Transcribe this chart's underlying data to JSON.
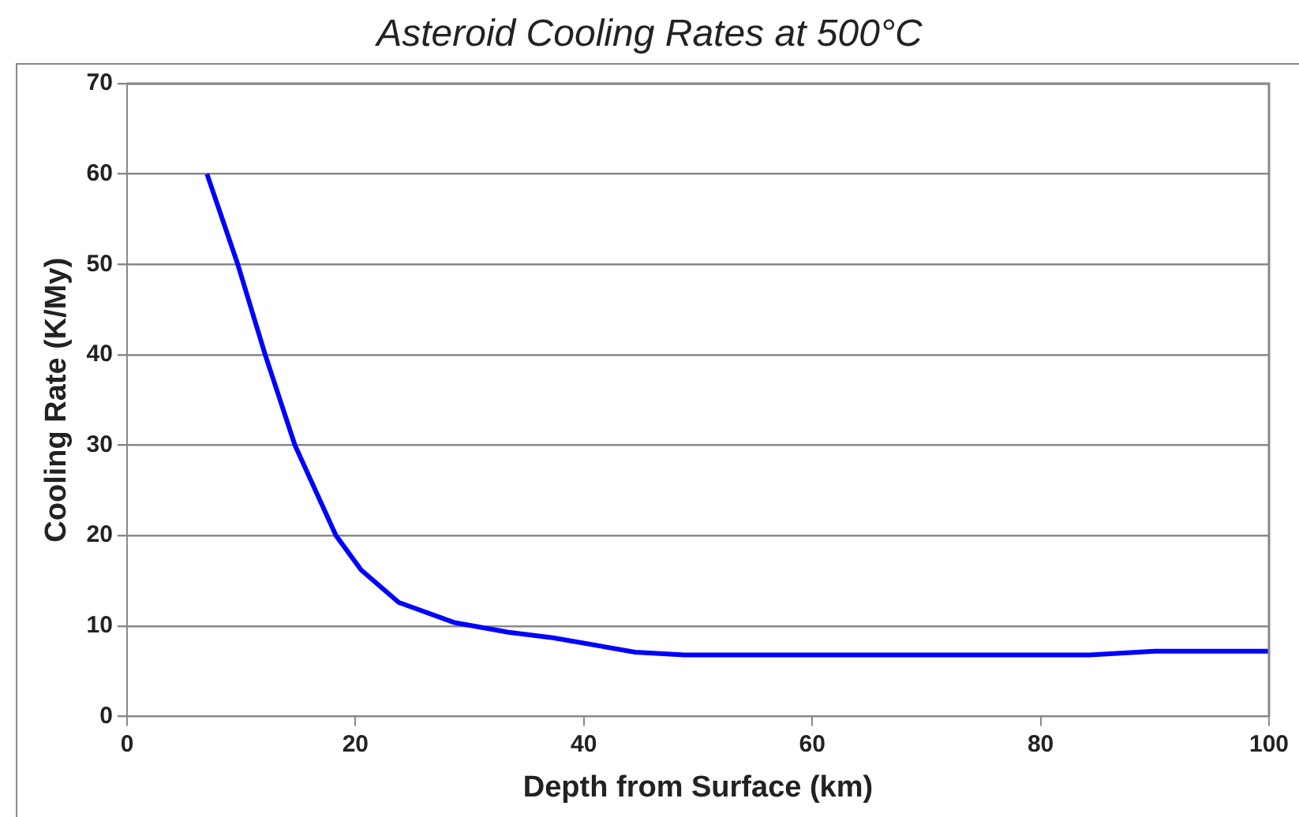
{
  "chart_data": {
    "type": "line",
    "title": "Asteroid Cooling Rates at 500°C",
    "xlabel": "Depth from Surface (km)",
    "ylabel": "Cooling Rate (K/My)",
    "x": [
      7,
      9.7,
      12.1,
      14.7,
      18.3,
      20.5,
      23.8,
      28.6,
      33.4,
      37.3,
      44.5,
      48.8,
      84.3,
      90,
      100
    ],
    "series": [
      {
        "color": "#0000ff",
        "values": [
          60,
          50,
          40,
          30,
          20,
          16.2,
          12.6,
          10.4,
          9.3,
          8.7,
          7.1,
          6.8,
          6.8,
          7.2,
          7.2
        ]
      }
    ],
    "xlim": [
      0,
      100
    ],
    "xticks": [
      0,
      20,
      40,
      60,
      80,
      100
    ],
    "ylim": [
      0,
      70
    ],
    "yticks": [
      0,
      10,
      20,
      30,
      40,
      50,
      60,
      70
    ],
    "grid": "y",
    "legend": false,
    "marker": "none",
    "line_style": "solid"
  }
}
